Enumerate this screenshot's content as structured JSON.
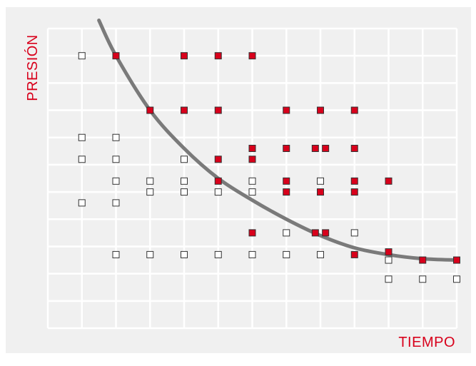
{
  "chart_data": {
    "type": "scatter",
    "xlabel": "TIEMPO",
    "ylabel": "PRESIÓN",
    "xlim": [
      0,
      12
    ],
    "ylim": [
      0,
      11
    ],
    "grid": true,
    "colors": {
      "background": "#f0f0f0",
      "plot_area": "#f0f0f0",
      "grid": "#ffffff",
      "filled_marker": "#d8001b",
      "hollow_marker_fill": "#ffffff",
      "marker_stroke": "#333333",
      "curve": "#7a7a7a",
      "label": "#d8001b"
    },
    "series": [
      {
        "marker": "filled-square",
        "points": [
          [
            2,
            10
          ],
          [
            4,
            10
          ],
          [
            5,
            10
          ],
          [
            6,
            10
          ],
          [
            3,
            8
          ],
          [
            4,
            8
          ],
          [
            5,
            8
          ],
          [
            7,
            8
          ],
          [
            8,
            8
          ],
          [
            9,
            8
          ],
          [
            6,
            6.6
          ],
          [
            7,
            6.6
          ],
          [
            7.85,
            6.6
          ],
          [
            8.15,
            6.6
          ],
          [
            9,
            6.6
          ],
          [
            5,
            6.2
          ],
          [
            6,
            6.2
          ],
          [
            5,
            5.4
          ],
          [
            7,
            5.4
          ],
          [
            9,
            5.4
          ],
          [
            10,
            5.4
          ],
          [
            7,
            5.0
          ],
          [
            8,
            5.0
          ],
          [
            9,
            5.0
          ],
          [
            6,
            3.5
          ],
          [
            7.85,
            3.5
          ],
          [
            8.15,
            3.5
          ],
          [
            10,
            2.8
          ],
          [
            9,
            2.7
          ],
          [
            11,
            2.5
          ],
          [
            12,
            2.5
          ]
        ]
      },
      {
        "marker": "hollow-square",
        "points": [
          [
            1,
            10
          ],
          [
            1,
            7
          ],
          [
            2,
            7
          ],
          [
            1,
            6.2
          ],
          [
            2,
            6.2
          ],
          [
            4,
            6.2
          ],
          [
            2,
            5.4
          ],
          [
            3,
            5.4
          ],
          [
            4,
            5.4
          ],
          [
            6,
            5.4
          ],
          [
            8,
            5.4
          ],
          [
            3,
            5.0
          ],
          [
            4,
            5.0
          ],
          [
            5,
            5.0
          ],
          [
            6,
            5.0
          ],
          [
            1,
            4.6
          ],
          [
            2,
            4.6
          ],
          [
            7,
            3.5
          ],
          [
            9,
            3.5
          ],
          [
            2,
            2.7
          ],
          [
            3,
            2.7
          ],
          [
            4,
            2.7
          ],
          [
            5,
            2.7
          ],
          [
            6,
            2.7
          ],
          [
            7,
            2.7
          ],
          [
            8,
            2.7
          ],
          [
            10,
            2.5
          ],
          [
            10,
            1.8
          ],
          [
            11,
            1.8
          ],
          [
            12,
            1.8
          ]
        ]
      }
    ],
    "curve": {
      "type": "line",
      "points": [
        [
          1.5,
          11.3
        ],
        [
          2,
          10
        ],
        [
          3,
          8
        ],
        [
          4,
          6.6
        ],
        [
          5,
          5.5
        ],
        [
          6,
          4.7
        ],
        [
          7,
          4.0
        ],
        [
          8,
          3.4
        ],
        [
          9,
          2.95
        ],
        [
          10,
          2.7
        ],
        [
          11,
          2.55
        ],
        [
          12,
          2.5
        ]
      ]
    }
  }
}
